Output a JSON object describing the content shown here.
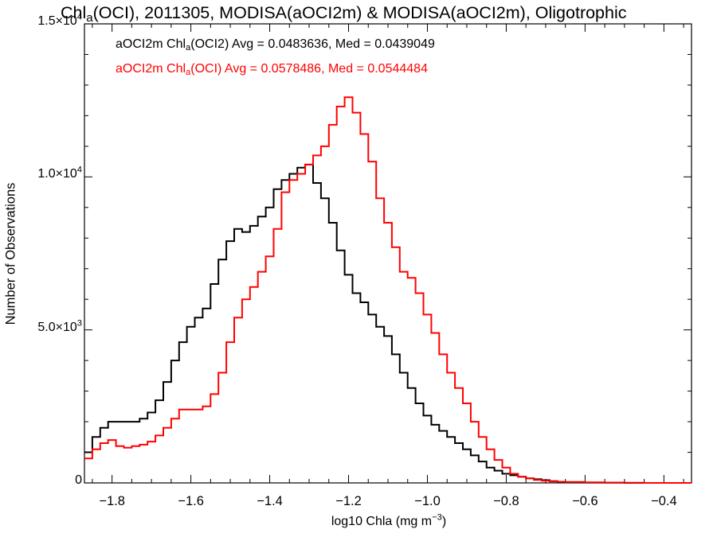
{
  "chart_data": {
    "type": "line",
    "title": {
      "pre": "Chl",
      "sub": "a",
      "post": "(OCI), 2011305, MODISA(aOCI2m) & MODISA(aOCI2m), Oligotrophic"
    },
    "xlabel": {
      "pre": "log10 Chla (mg m",
      "sup": "−3",
      "post": ")"
    },
    "ylabel": "Number of Observations",
    "xlim": [
      -1.87,
      -0.33
    ],
    "ylim": [
      0,
      15000
    ],
    "xticks": [
      -1.8,
      -1.6,
      -1.4,
      -1.2,
      -1.0,
      -0.8,
      -0.6,
      -0.4
    ],
    "xtick_labels": [
      "−1.8",
      "−1.6",
      "−1.4",
      "−1.2",
      "−1.0",
      "−0.8",
      "−0.6",
      "−0.4"
    ],
    "yticks": [
      {
        "value": 0,
        "mant": "0",
        "exp": ""
      },
      {
        "value": 5000,
        "mant": "5.0×10",
        "exp": "3"
      },
      {
        "value": 10000,
        "mant": "1.0×10",
        "exp": "4"
      },
      {
        "value": 15000,
        "mant": "1.5×10",
        "exp": "4"
      }
    ],
    "grid": false,
    "legend_position": "top-left",
    "step": true,
    "series": [
      {
        "name": {
          "pre": "aOCI2m Chl",
          "sub": "a",
          "post": "(OCI2) Avg = 0.0483636, Med = 0.0439049"
        },
        "color": "#000000",
        "x": [
          -1.87,
          -1.85,
          -1.83,
          -1.81,
          -1.79,
          -1.77,
          -1.75,
          -1.73,
          -1.71,
          -1.69,
          -1.67,
          -1.65,
          -1.63,
          -1.61,
          -1.59,
          -1.57,
          -1.55,
          -1.53,
          -1.51,
          -1.49,
          -1.47,
          -1.45,
          -1.43,
          -1.41,
          -1.39,
          -1.37,
          -1.35,
          -1.33,
          -1.31,
          -1.29,
          -1.27,
          -1.25,
          -1.23,
          -1.21,
          -1.19,
          -1.17,
          -1.15,
          -1.13,
          -1.11,
          -1.09,
          -1.07,
          -1.05,
          -1.03,
          -1.01,
          -0.99,
          -0.97,
          -0.95,
          -0.93,
          -0.91,
          -0.89,
          -0.87,
          -0.85,
          -0.83,
          -0.81,
          -0.79,
          -0.77,
          -0.75,
          -0.73,
          -0.71,
          -0.69,
          -0.67,
          -0.65,
          -0.6,
          -0.55,
          -0.5,
          -0.45,
          -0.4,
          -0.34
        ],
        "y": [
          1000,
          1500,
          1800,
          2000,
          2000,
          2000,
          2000,
          2100,
          2300,
          2700,
          3300,
          4000,
          4600,
          5100,
          5400,
          5700,
          6500,
          7300,
          7900,
          8300,
          8200,
          8400,
          8700,
          9000,
          9600,
          9900,
          10100,
          10300,
          10400,
          9800,
          9300,
          8500,
          7600,
          6800,
          6200,
          5900,
          5500,
          5100,
          4800,
          4200,
          3600,
          3100,
          2600,
          2200,
          1900,
          1700,
          1500,
          1300,
          1100,
          900,
          700,
          500,
          400,
          300,
          250,
          200,
          150,
          120,
          90,
          60,
          40,
          20,
          10,
          5,
          0,
          0,
          0,
          0
        ]
      },
      {
        "name": {
          "pre": "aOCI2m Chl",
          "sub": "a",
          "post": "(OCI) Avg = 0.0578486, Med = 0.0544484"
        },
        "color": "#ff0000",
        "x": [
          -1.87,
          -1.85,
          -1.83,
          -1.81,
          -1.79,
          -1.77,
          -1.75,
          -1.73,
          -1.71,
          -1.69,
          -1.67,
          -1.65,
          -1.63,
          -1.61,
          -1.59,
          -1.57,
          -1.55,
          -1.53,
          -1.51,
          -1.49,
          -1.47,
          -1.45,
          -1.43,
          -1.41,
          -1.39,
          -1.37,
          -1.35,
          -1.33,
          -1.31,
          -1.29,
          -1.27,
          -1.25,
          -1.23,
          -1.21,
          -1.19,
          -1.17,
          -1.15,
          -1.13,
          -1.11,
          -1.09,
          -1.07,
          -1.05,
          -1.03,
          -1.01,
          -0.99,
          -0.97,
          -0.95,
          -0.93,
          -0.91,
          -0.89,
          -0.87,
          -0.85,
          -0.83,
          -0.81,
          -0.79,
          -0.77,
          -0.75,
          -0.73,
          -0.71,
          -0.69,
          -0.67,
          -0.65,
          -0.6,
          -0.55,
          -0.5,
          -0.45,
          -0.4,
          -0.34
        ],
        "y": [
          800,
          1100,
          1300,
          1400,
          1200,
          1150,
          1200,
          1250,
          1350,
          1550,
          1800,
          2100,
          2400,
          2400,
          2400,
          2500,
          2900,
          3600,
          4600,
          5400,
          6000,
          6400,
          6900,
          7400,
          8300,
          9500,
          9900,
          10100,
          10400,
          10700,
          11000,
          11700,
          12300,
          12600,
          12100,
          11400,
          10500,
          9300,
          8500,
          7700,
          6900,
          6700,
          6200,
          5500,
          4900,
          4200,
          3600,
          3100,
          2600,
          2000,
          1500,
          1100,
          750,
          500,
          300,
          200,
          150,
          100,
          70,
          50,
          40,
          30,
          20,
          10,
          5,
          0,
          0,
          0
        ]
      }
    ]
  }
}
